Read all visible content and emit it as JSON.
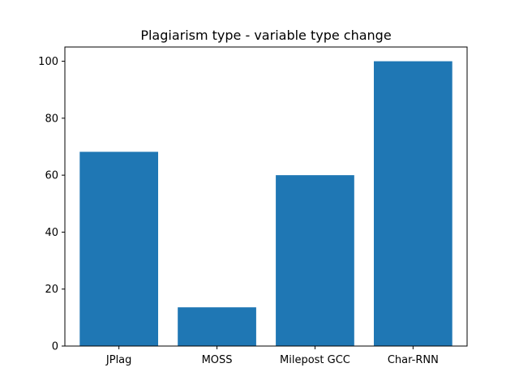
{
  "chart_data": {
    "type": "bar",
    "title": "Plagiarism type - variable type change",
    "xlabel": "",
    "ylabel": "",
    "categories": [
      "JPlag",
      "MOSS",
      "Milepost GCC",
      "Char-RNN"
    ],
    "values": [
      68.2,
      13.6,
      60.0,
      100.0
    ],
    "ylim": [
      0,
      105
    ],
    "yticks": [
      0,
      20,
      40,
      60,
      80,
      100
    ],
    "bar_color": "#1f77b4",
    "grid": false,
    "legend": "none"
  }
}
